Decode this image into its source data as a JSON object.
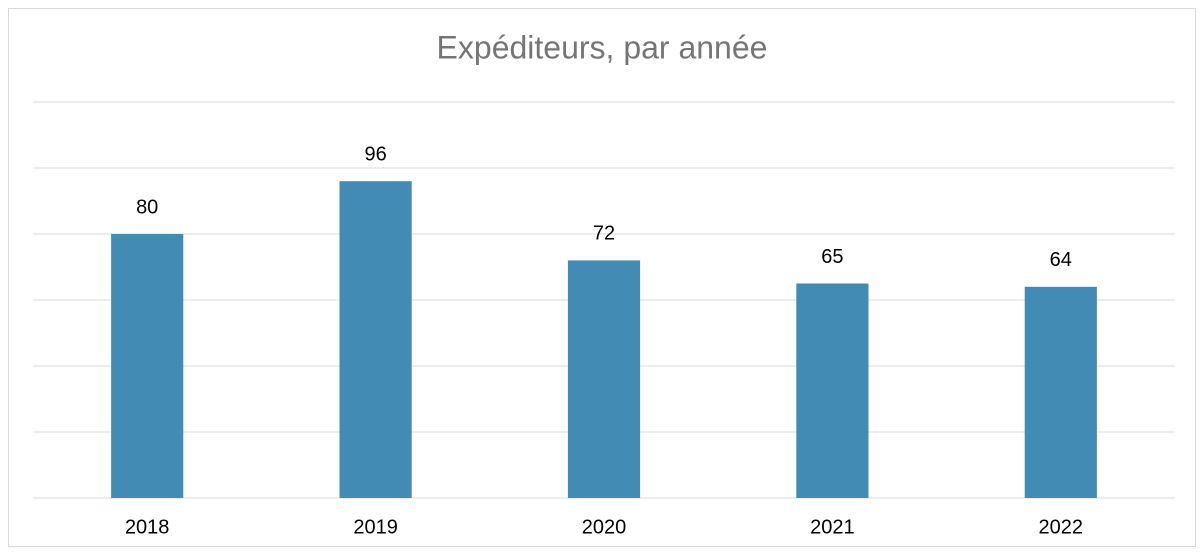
{
  "chart_data": {
    "type": "bar",
    "title": "Expéditeurs, par année",
    "categories": [
      "2018",
      "2019",
      "2020",
      "2021",
      "2022"
    ],
    "values": [
      80,
      96,
      72,
      65,
      64
    ],
    "color": "#428bb5",
    "ylim": [
      0,
      120
    ],
    "yticks": [
      0,
      20,
      40,
      60,
      80,
      100,
      120
    ],
    "grid": true
  }
}
